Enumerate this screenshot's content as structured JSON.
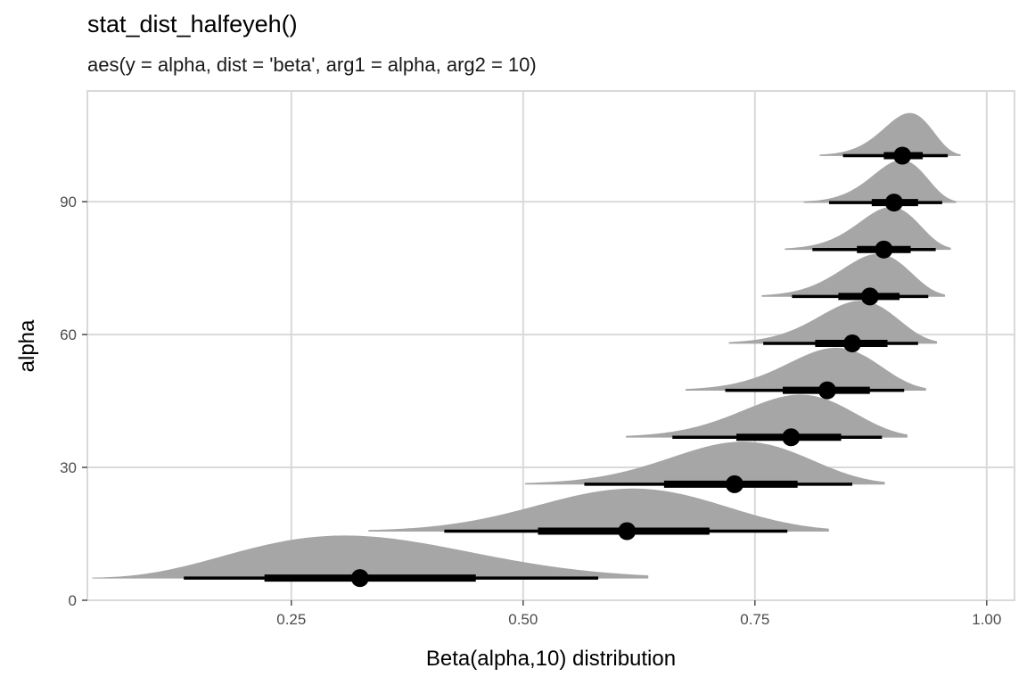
{
  "chart_data": {
    "type": "halfeye",
    "title": "stat_dist_halfeyeh()",
    "subtitle": "aes(y = alpha, dist = 'beta', arg1 = alpha, arg2 = 10)",
    "xlabel": "Beta(alpha,10) distribution",
    "ylabel": "alpha",
    "xlim": [
      0.03,
      1.03
    ],
    "ylim": [
      0,
      115
    ],
    "x_ticks": [
      0.25,
      0.5,
      0.75,
      1.0
    ],
    "x_tick_labels": [
      "0.25",
      "0.50",
      "0.75",
      "1.00"
    ],
    "y_ticks": [
      0,
      30,
      60,
      90
    ],
    "y_tick_labels": [
      "0",
      "30",
      "60",
      "90"
    ],
    "grid": true,
    "dist_beta": 10,
    "alpha": [
      5,
      15.6,
      26.2,
      36.8,
      47.4,
      58,
      68.6,
      79.2,
      89.8,
      100.4
    ],
    "point_median": [
      0.324,
      0.612,
      0.728,
      0.789,
      0.828,
      0.855,
      0.874,
      0.889,
      0.9,
      0.909
    ],
    "interval_66": [
      [
        0.221,
        0.449
      ],
      [
        0.516,
        0.701
      ],
      [
        0.652,
        0.796
      ],
      [
        0.73,
        0.843
      ],
      [
        0.78,
        0.874
      ],
      [
        0.815,
        0.893
      ],
      [
        0.84,
        0.906
      ],
      [
        0.86,
        0.918
      ],
      [
        0.876,
        0.926
      ],
      [
        0.889,
        0.931
      ]
    ],
    "interval_95": [
      [
        0.134,
        0.581
      ],
      [
        0.415,
        0.785
      ],
      [
        0.566,
        0.855
      ],
      [
        0.661,
        0.887
      ],
      [
        0.718,
        0.911
      ],
      [
        0.759,
        0.926
      ],
      [
        0.79,
        0.937
      ],
      [
        0.812,
        0.945
      ],
      [
        0.83,
        0.952
      ],
      [
        0.845,
        0.958
      ]
    ],
    "slab_color": "#a6a6a6",
    "interval_color": "#000000",
    "panel_grid_color": "#d9d9d9"
  }
}
